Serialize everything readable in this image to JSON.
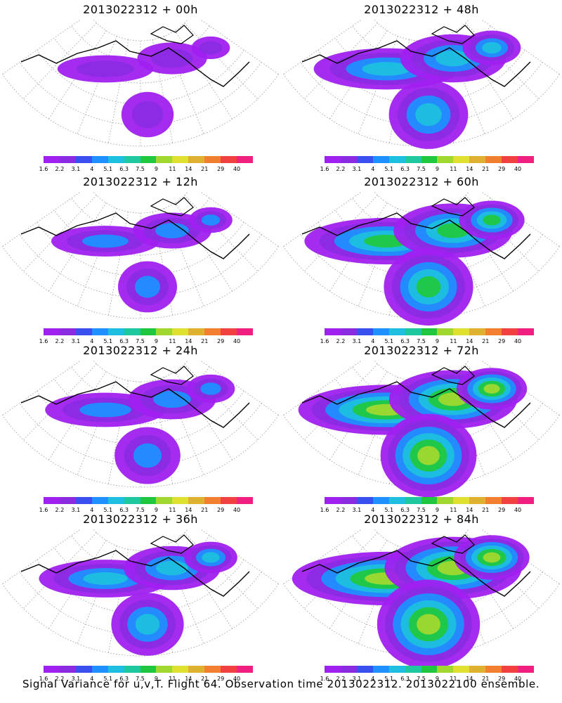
{
  "colorbar": {
    "colors": [
      "#a020f0",
      "#8a2be2",
      "#3a4ff0",
      "#1e90ff",
      "#1ec0e0",
      "#20c8a0",
      "#20c840",
      "#a0d830",
      "#e0e030",
      "#e0b030",
      "#f08030",
      "#f04040",
      "#f02080"
    ],
    "labels": [
      "1.6",
      "2.2",
      "3.1",
      "4",
      "5.1",
      "6.3",
      "7.5",
      "9",
      "11",
      "14",
      "21",
      "29",
      "40"
    ]
  },
  "panels": [
    {
      "title": "2013022312 + 00h",
      "level": 0.15
    },
    {
      "title": "2013022312 + 48h",
      "level": 0.55
    },
    {
      "title": "2013022312 + 12h",
      "level": 0.25
    },
    {
      "title": "2013022312 + 60h",
      "level": 0.7
    },
    {
      "title": "2013022312 + 24h",
      "level": 0.35
    },
    {
      "title": "2013022312 + 72h",
      "level": 0.8
    },
    {
      "title": "2013022312 + 36h",
      "level": 0.45
    },
    {
      "title": "2013022312 + 84h",
      "level": 0.9
    }
  ],
  "footer": "Signal Variance for u,v,T. Flight 64. Observation time 2013022312. 2013022100 ensemble."
}
